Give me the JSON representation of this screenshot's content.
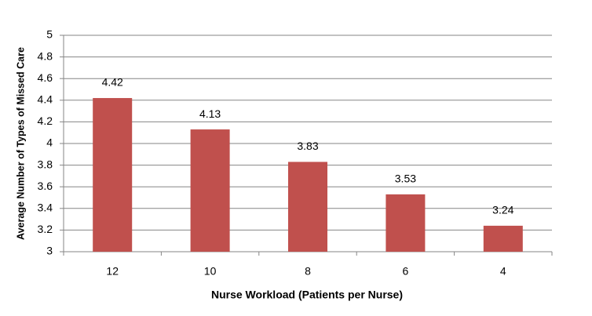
{
  "chart_data": {
    "type": "bar",
    "x_label": "Nurse Workload (Patients per Nurse)",
    "y_label": "Average Number of Types of Missed Care",
    "categories": [
      "12",
      "10",
      "8",
      "6",
      "4"
    ],
    "values": [
      4.42,
      4.13,
      3.83,
      3.53,
      3.24
    ],
    "color": "#c0504d",
    "ylim": [
      3,
      5
    ],
    "yticks": [
      3,
      3.2,
      3.4,
      3.6,
      3.8,
      4,
      4.2,
      4.4,
      4.6,
      4.8,
      5
    ],
    "grid": true
  }
}
